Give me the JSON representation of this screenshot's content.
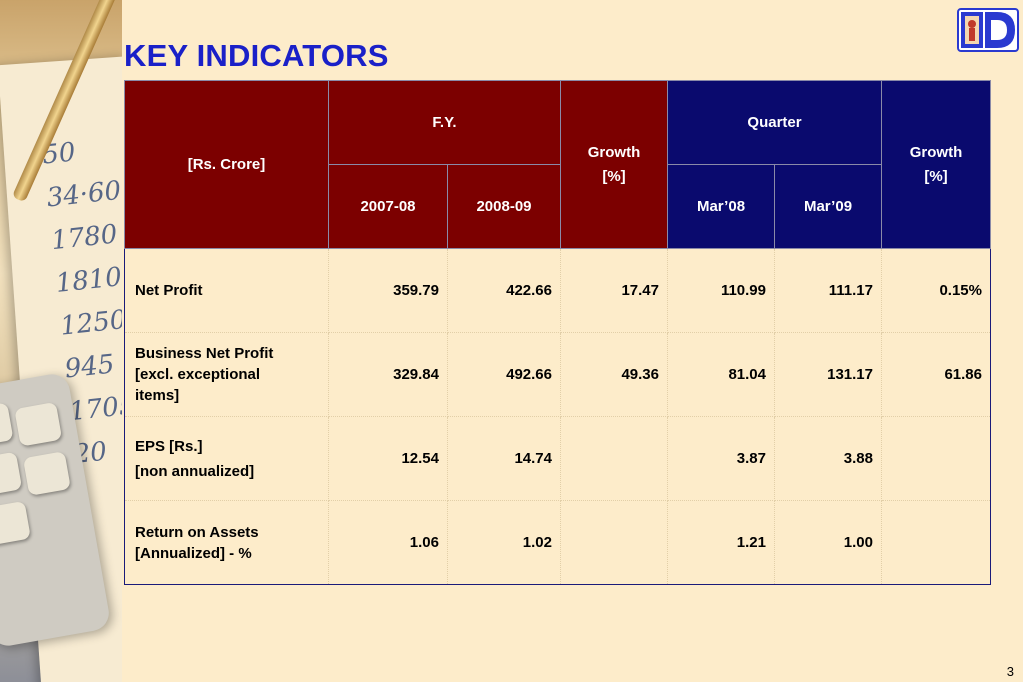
{
  "slide": {
    "title": "KEY INDICATORS",
    "page_number": "3"
  },
  "logo": {
    "letter": "D",
    "icon": "bank-logo-icon"
  },
  "table": {
    "unit_header": "[Rs. Crore]",
    "fy_header": "F.Y.",
    "fy_growth_header": [
      "Growth",
      "[%]"
    ],
    "quarter_header": "Quarter",
    "quarter_growth_header": [
      "Growth",
      "[%]"
    ],
    "fy_years": [
      "2007-08",
      "2008-09"
    ],
    "quarters": [
      "Mar’08",
      "Mar’09"
    ],
    "rows": [
      {
        "label_lines": [
          "Net Profit"
        ],
        "values": [
          "359.79",
          "422.66",
          "17.47",
          "110.99",
          "111.17",
          "0.15%"
        ]
      },
      {
        "label_lines": [
          "Business Net Profit",
          "[excl. exceptional",
          "items]"
        ],
        "values": [
          "329.84",
          "492.66",
          "49.36",
          "81.04",
          "131.17",
          "61.86"
        ]
      },
      {
        "label_lines": [
          "EPS [Rs.]",
          "[non annualized]"
        ],
        "values": [
          "12.54",
          "14.74",
          "",
          "3.87",
          "3.88",
          ""
        ]
      },
      {
        "label_lines": [
          "Return on Assets",
          "[Annualized] - %"
        ],
        "values": [
          "1.06",
          "1.02",
          "",
          "1.21",
          "1.00",
          ""
        ]
      }
    ]
  },
  "colors": {
    "background": "#fdecca",
    "title": "#1a20c8",
    "fy_header_bg": "#7c0000",
    "quarter_header_bg": "#0a0a6e",
    "row_label": "#1a1aa8"
  }
}
